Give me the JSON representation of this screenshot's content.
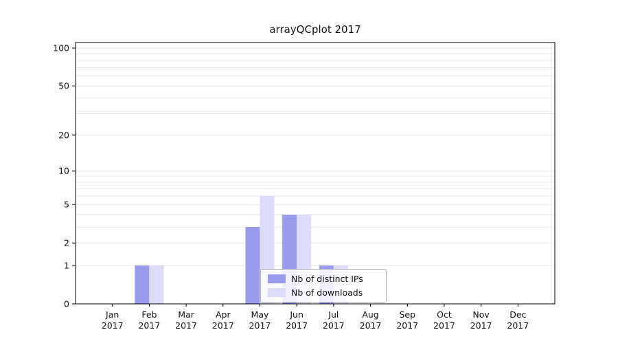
{
  "chart_data": {
    "type": "bar",
    "title": "arrayQCplot 2017",
    "categories": [
      "Jan",
      "Feb",
      "Mar",
      "Apr",
      "May",
      "Jun",
      "Jul",
      "Aug",
      "Sep",
      "Oct",
      "Nov",
      "Dec"
    ],
    "year": "2017",
    "series": [
      {
        "name": "Nb of distinct IPs",
        "color": "#9b9bee",
        "values": [
          0,
          1,
          0,
          0,
          3,
          4,
          1,
          0,
          0,
          0,
          0,
          0
        ]
      },
      {
        "name": "Nb of downloads",
        "color": "#dcdcf8",
        "values": [
          0,
          1,
          0,
          0,
          6,
          4,
          1,
          0,
          0,
          0,
          0,
          0
        ]
      }
    ],
    "yscale": "log1p",
    "ylim": [
      0,
      110
    ],
    "yticks": [
      0,
      1,
      2,
      5,
      10,
      20,
      50,
      100
    ],
    "minor_gridlines": [
      1,
      2,
      3,
      4,
      5,
      6,
      7,
      8,
      9,
      10,
      20,
      30,
      40,
      50,
      60,
      70,
      80,
      90,
      100
    ],
    "grid": true,
    "legend_position": "bottom-center-inside",
    "background": "#ffffff",
    "gridline_color": "#e7e7e7",
    "axis_color": "#000000"
  }
}
